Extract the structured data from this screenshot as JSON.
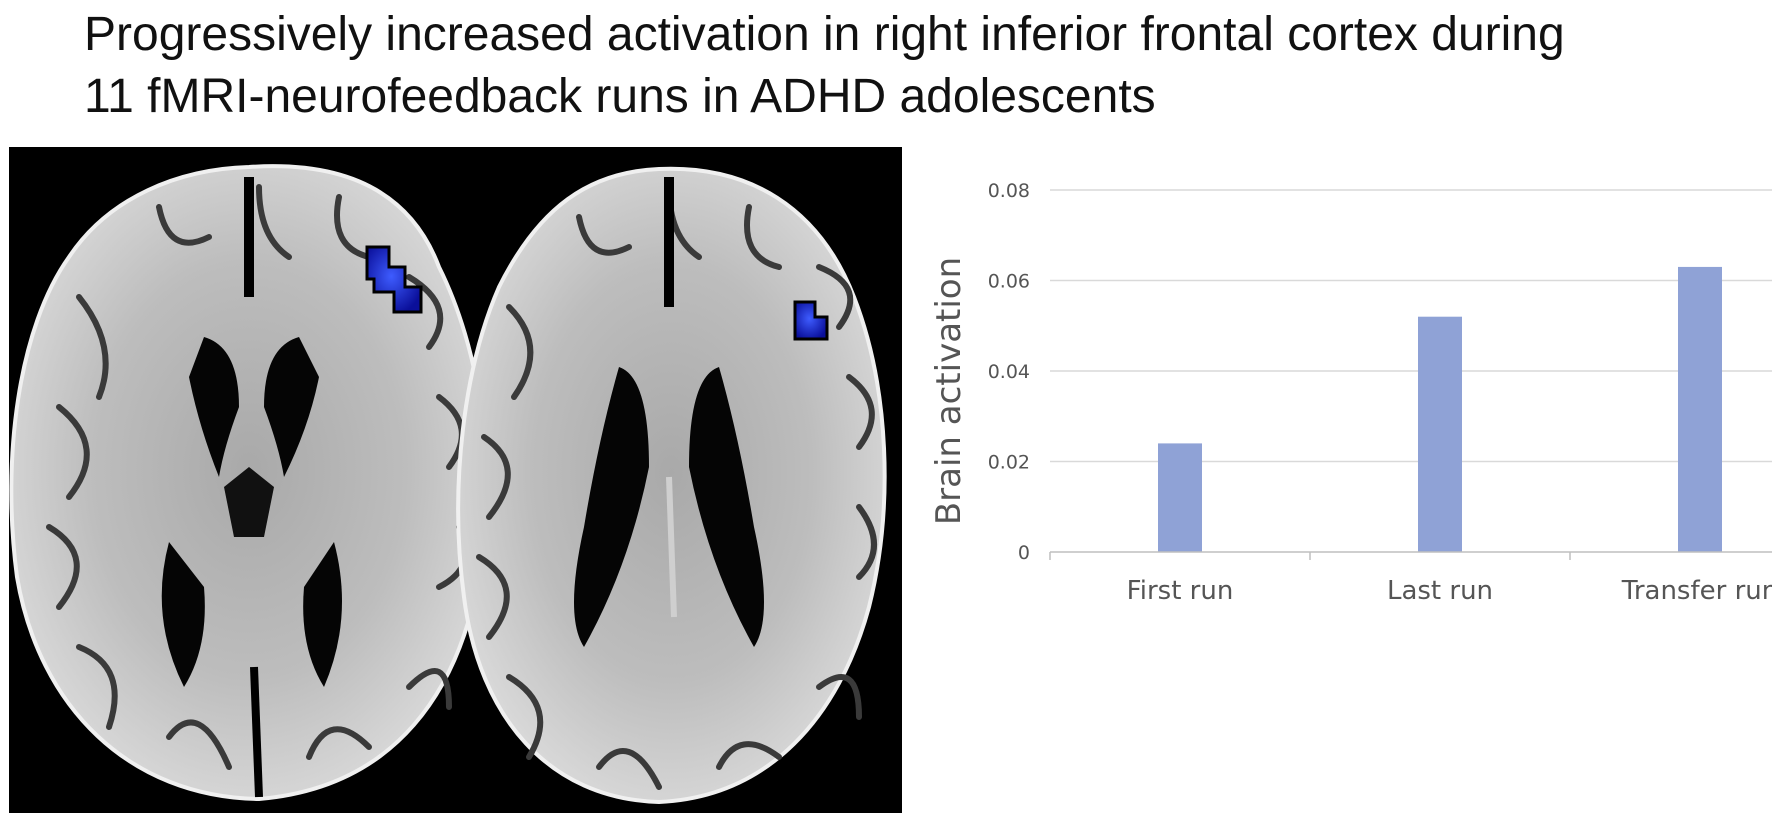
{
  "title": {
    "line1": "Progressively increased activation in right inferior frontal cortex during",
    "line2": "11 fMRI-neurofeedback runs in ADHD adolescents"
  },
  "brain_panel": {
    "activation_color": "#1a22e0",
    "background_color": "#000000"
  },
  "chart_data": {
    "type": "bar",
    "categories": [
      "First run",
      "Last run",
      "Transfer run"
    ],
    "values": [
      0.024,
      0.052,
      0.063
    ],
    "ylabel": "Brain activation",
    "xlabel": "",
    "ylim": [
      0,
      0.08
    ],
    "yticks": [
      0,
      0.02,
      0.04,
      0.06,
      0.08
    ],
    "ytick_labels": [
      "0",
      "0.02",
      "0.04",
      "0.06",
      "0.08"
    ],
    "grid": true,
    "legend": "none",
    "bar_color": "#8fa2d6",
    "grid_color": "#d9d9d9"
  }
}
